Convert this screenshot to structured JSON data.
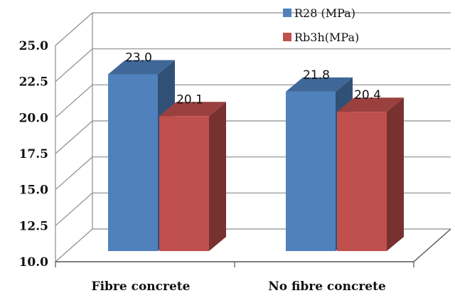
{
  "chart_data": {
    "type": "bar",
    "categories": [
      "Fibre concrete",
      "No fibre concrete"
    ],
    "series": [
      {
        "name": "R28 (MPa)",
        "values": [
          23.0,
          21.8
        ],
        "color": "#4F81BD"
      },
      {
        "name": "Rb3h(MPa)",
        "values": [
          20.1,
          20.4
        ],
        "color": "#C0504D"
      }
    ],
    "data_labels": [
      [
        "23.0",
        "21.8"
      ],
      [
        "20.1",
        "20.4"
      ]
    ],
    "yticks": [
      "10.0",
      "12.5",
      "15.0",
      "17.5",
      "20.0",
      "22.5",
      "25.0"
    ],
    "ylim": [
      10,
      25
    ],
    "grid": true,
    "three_d": true,
    "legend_position": "top-right"
  }
}
